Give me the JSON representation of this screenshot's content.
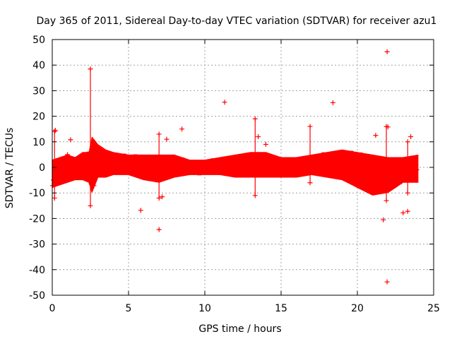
{
  "chart_data": {
    "type": "scatter",
    "title": "Day 365 of 2011, Sidereal Day-to-day VTEC variation (SDTVAR) for receiver azu1",
    "xlabel": "GPS time / hours",
    "ylabel": "SDTVAR / TECUs",
    "xlim": [
      0,
      25
    ],
    "ylim": [
      -50,
      50
    ],
    "xticks": [
      0,
      5,
      10,
      15,
      20,
      25
    ],
    "yticks": [
      -50,
      -40,
      -30,
      -20,
      -10,
      0,
      10,
      20,
      30,
      40,
      50
    ],
    "grid": true,
    "marker": "+",
    "color": "#ff0000",
    "band_envelope": [
      [
        0.0,
        -8,
        3
      ],
      [
        0.5,
        -7,
        4
      ],
      [
        1.0,
        -6,
        5
      ],
      [
        1.5,
        -5,
        4
      ],
      [
        2.0,
        -5,
        6
      ],
      [
        2.4,
        -6,
        6
      ],
      [
        2.6,
        -10,
        12
      ],
      [
        3.0,
        -4,
        9
      ],
      [
        3.5,
        -4,
        7
      ],
      [
        4.0,
        -3,
        6
      ],
      [
        5.0,
        -3,
        5
      ],
      [
        6.0,
        -5,
        5
      ],
      [
        7.0,
        -6,
        5
      ],
      [
        8.0,
        -4,
        5
      ],
      [
        9.0,
        -3,
        3
      ],
      [
        10.0,
        -3,
        3
      ],
      [
        11.0,
        -3,
        4
      ],
      [
        12.0,
        -4,
        5
      ],
      [
        13.0,
        -4,
        6
      ],
      [
        14.0,
        -4,
        6
      ],
      [
        15.0,
        -4,
        4
      ],
      [
        16.0,
        -4,
        4
      ],
      [
        17.0,
        -3,
        5
      ],
      [
        18.0,
        -4,
        6
      ],
      [
        19.0,
        -5,
        7
      ],
      [
        20.0,
        -8,
        6
      ],
      [
        21.0,
        -11,
        5
      ],
      [
        22.0,
        -10,
        4
      ],
      [
        23.0,
        -6,
        4
      ],
      [
        24.0,
        -6,
        5
      ]
    ],
    "spikes": [
      [
        2.5,
        -15,
        38.5
      ],
      [
        13.3,
        -11,
        19
      ],
      [
        16.9,
        -6,
        16
      ],
      [
        7.0,
        -12,
        13
      ],
      [
        21.9,
        -13,
        16
      ],
      [
        0.15,
        -12,
        14
      ],
      [
        23.3,
        -10,
        10
      ]
    ],
    "outliers": [
      {
        "x": 11.3,
        "y": 25.5
      },
      {
        "x": 18.4,
        "y": 25.3
      },
      {
        "x": 21.95,
        "y": 45.2
      },
      {
        "x": 21.95,
        "y": -44.8
      },
      {
        "x": 22.0,
        "y": 15.8
      },
      {
        "x": 7.0,
        "y": -24.3
      },
      {
        "x": 5.8,
        "y": -16.8
      },
      {
        "x": 21.7,
        "y": -20.5
      },
      {
        "x": 23.0,
        "y": -17.8
      },
      {
        "x": 23.3,
        "y": -17.2
      },
      {
        "x": 1.2,
        "y": 10.8
      },
      {
        "x": 1.0,
        "y": 5.0
      },
      {
        "x": 8.5,
        "y": 15.0
      },
      {
        "x": 7.5,
        "y": 11.0
      },
      {
        "x": 0.2,
        "y": 14.5
      },
      {
        "x": 23.5,
        "y": 12.0
      },
      {
        "x": 21.2,
        "y": 12.5
      },
      {
        "x": 13.5,
        "y": 12.0
      },
      {
        "x": 7.2,
        "y": -11.5
      },
      {
        "x": 14.0,
        "y": 9.0
      }
    ]
  }
}
